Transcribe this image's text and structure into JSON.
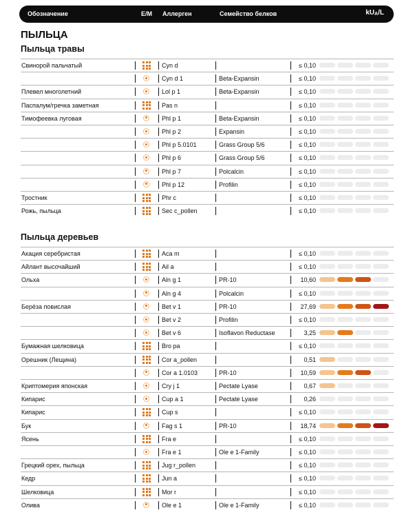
{
  "header": {
    "col_designation": "Обозначение",
    "col_em": "E/M",
    "col_allergen": "Аллерген",
    "col_family": "Семейство белков",
    "col_unit": "kU",
    "col_unit_sub": "A",
    "col_unit_suffix": "/L"
  },
  "section_title": "ПЫЛЬЦА",
  "groups": [
    {
      "title": "Пыльца травы",
      "rows": [
        {
          "name": "Свинорой пальчатый",
          "type": "extract",
          "allergen": "Cyn d",
          "family": "",
          "value": "≤ 0,10",
          "level": 0
        },
        {
          "name": "",
          "type": "molecule",
          "allergen": "Cyn d 1",
          "family": "Beta-Expansin",
          "value": "≤ 0,10",
          "level": 0
        },
        {
          "name": "Плевел многолетний",
          "type": "molecule",
          "allergen": "Lol p 1",
          "family": "Beta-Expansin",
          "value": "≤ 0,10",
          "level": 0
        },
        {
          "name": "Паспалум/гречка заметная",
          "type": "extract",
          "allergen": "Pas n",
          "family": "",
          "value": "≤ 0,10",
          "level": 0
        },
        {
          "name": "Тимофеевка луговая",
          "type": "molecule",
          "allergen": "Phl p 1",
          "family": "Beta-Expansin",
          "value": "≤ 0,10",
          "level": 0
        },
        {
          "name": "",
          "type": "molecule",
          "allergen": "Phl p 2",
          "family": "Expansin",
          "value": "≤ 0,10",
          "level": 0
        },
        {
          "name": "",
          "type": "molecule",
          "allergen": "Phl p 5.0101",
          "family": "Grass Group 5/6",
          "value": "≤ 0,10",
          "level": 0
        },
        {
          "name": "",
          "type": "molecule",
          "allergen": "Phl p 6",
          "family": "Grass Group 5/6",
          "value": "≤ 0,10",
          "level": 0
        },
        {
          "name": "",
          "type": "molecule",
          "allergen": "Phl p 7",
          "family": "Polcalcin",
          "value": "≤ 0,10",
          "level": 0
        },
        {
          "name": "",
          "type": "molecule",
          "allergen": "Phl p 12",
          "family": "Profilin",
          "value": "≤ 0,10",
          "level": 0
        },
        {
          "name": "Тростник",
          "type": "extract",
          "allergen": "Phr c",
          "family": "",
          "value": "≤ 0,10",
          "level": 0
        },
        {
          "name": "Рожь, пыльца",
          "type": "extract",
          "allergen": "Sec c_pollen",
          "family": "",
          "value": "≤ 0,10",
          "level": 0
        }
      ]
    },
    {
      "title": "Пыльца деревьев",
      "rows": [
        {
          "name": "Акация серебристая",
          "type": "extract",
          "allergen": "Aca m",
          "family": "",
          "value": "≤ 0,10",
          "level": 0
        },
        {
          "name": "Айлант высочайший",
          "type": "extract",
          "allergen": "Ail a",
          "family": "",
          "value": "≤ 0,10",
          "level": 0
        },
        {
          "name": "Ольха",
          "type": "molecule",
          "allergen": "Aln g 1",
          "family": "PR-10",
          "value": "10,60",
          "level": 3
        },
        {
          "name": "",
          "type": "molecule",
          "allergen": "Aln g 4",
          "family": "Polcalcin",
          "value": "≤ 0,10",
          "level": 0
        },
        {
          "name": "Берёза повислая",
          "type": "molecule",
          "allergen": "Bet v 1",
          "family": "PR-10",
          "value": "27,69",
          "level": 4
        },
        {
          "name": "",
          "type": "molecule",
          "allergen": "Bet v 2",
          "family": "Profilin",
          "value": "≤ 0,10",
          "level": 0
        },
        {
          "name": "",
          "type": "molecule",
          "allergen": "Bet v 6",
          "family": "Isoflavon Reductase",
          "value": "3,25",
          "level": 2
        },
        {
          "name": "Бумажная шелковица",
          "type": "extract",
          "allergen": "Bro pa",
          "family": "",
          "value": "≤ 0,10",
          "level": 0
        },
        {
          "name": "Орешник (Лещина)",
          "type": "extract",
          "allergen": "Cor a_pollen",
          "family": "",
          "value": "0,51",
          "level": 1
        },
        {
          "name": "",
          "type": "molecule",
          "allergen": "Cor a 1.0103",
          "family": "PR-10",
          "value": "10,59",
          "level": 3
        },
        {
          "name": "Криптомерия японская",
          "type": "molecule",
          "allergen": "Cry j 1",
          "family": "Pectate Lyase",
          "value": "0,67",
          "level": 1
        },
        {
          "name": "Кипарис",
          "type": "molecule",
          "allergen": "Cup a 1",
          "family": "Pectate Lyase",
          "value": "0,26",
          "level": 0
        },
        {
          "name": "Кипарис",
          "type": "extract",
          "allergen": "Cup s",
          "family": "",
          "value": "≤ 0,10",
          "level": 0
        },
        {
          "name": "Бук",
          "type": "molecule",
          "allergen": "Fag s 1",
          "family": "PR-10",
          "value": "18,74",
          "level": 4
        },
        {
          "name": "Ясень",
          "type": "extract",
          "allergen": "Fra e",
          "family": "",
          "value": "≤ 0,10",
          "level": 0
        },
        {
          "name": "",
          "type": "molecule",
          "allergen": "Fra e 1",
          "family": "Ole e 1-Family",
          "value": "≤ 0,10",
          "level": 0
        },
        {
          "name": "Грецкий орех, пыльца",
          "type": "extract",
          "allergen": "Jug r_pollen",
          "family": "",
          "value": "≤ 0,10",
          "level": 0
        },
        {
          "name": "Кедр",
          "type": "extract",
          "allergen": "Jun a",
          "family": "",
          "value": "≤ 0,10",
          "level": 0
        },
        {
          "name": "Шелковица",
          "type": "extract",
          "allergen": "Mor r",
          "family": "",
          "value": "≤ 0,10",
          "level": 0
        },
        {
          "name": "Олива",
          "type": "molecule",
          "allergen": "Ole e 1",
          "family": "Ole e 1-Family",
          "value": "≤ 0,10",
          "level": 0
        }
      ]
    }
  ],
  "colors": {
    "bar_empty": "#ececec",
    "bar_level_1": "#f5c490",
    "bar_level_2": "#e37b1c",
    "bar_level_3": "#cf5316",
    "bar_level_4": "#a51616",
    "icon_orange": "#e0781c"
  }
}
